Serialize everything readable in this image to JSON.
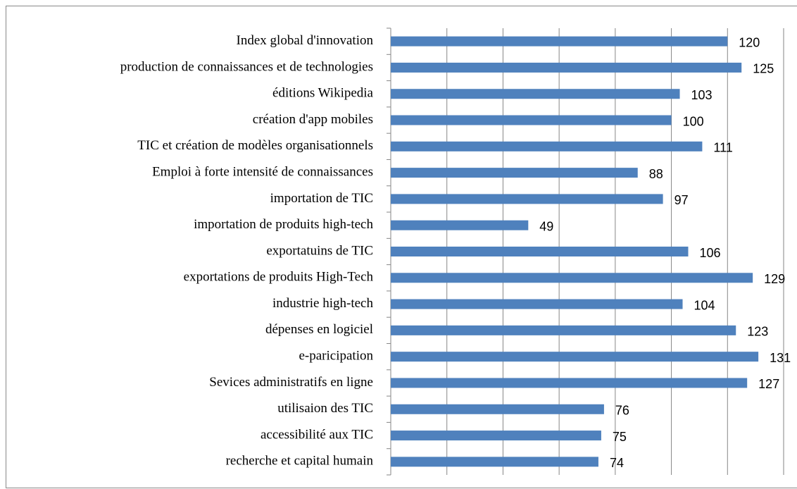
{
  "chart_data": {
    "type": "bar",
    "orientation": "horizontal",
    "categories": [
      "Index global d'innovation",
      "production de connaissances et de technologies",
      "éditions Wikipedia",
      "création d'app mobiles",
      "TIC et  création de modèles organisationnels",
      "Emploi à forte intensité de connaissances",
      "importation de TIC",
      "importation de produits high-tech",
      "exportatuins de TIC",
      "exportations de produits High-Tech",
      "industrie high-tech",
      "dépenses en logiciel",
      "e-paricipation",
      "Sevices administratifs en ligne",
      "utilisaion des TIC",
      "accessibilité aux TIC",
      "recherche et capital humain"
    ],
    "values": [
      120,
      125,
      103,
      100,
      111,
      88,
      97,
      49,
      106,
      129,
      104,
      123,
      131,
      127,
      76,
      75,
      74
    ],
    "color": "#4f81bd",
    "xlim": [
      0,
      140
    ],
    "xticks": [
      0,
      20,
      40,
      60,
      80,
      100,
      120,
      140
    ],
    "grid": true
  }
}
